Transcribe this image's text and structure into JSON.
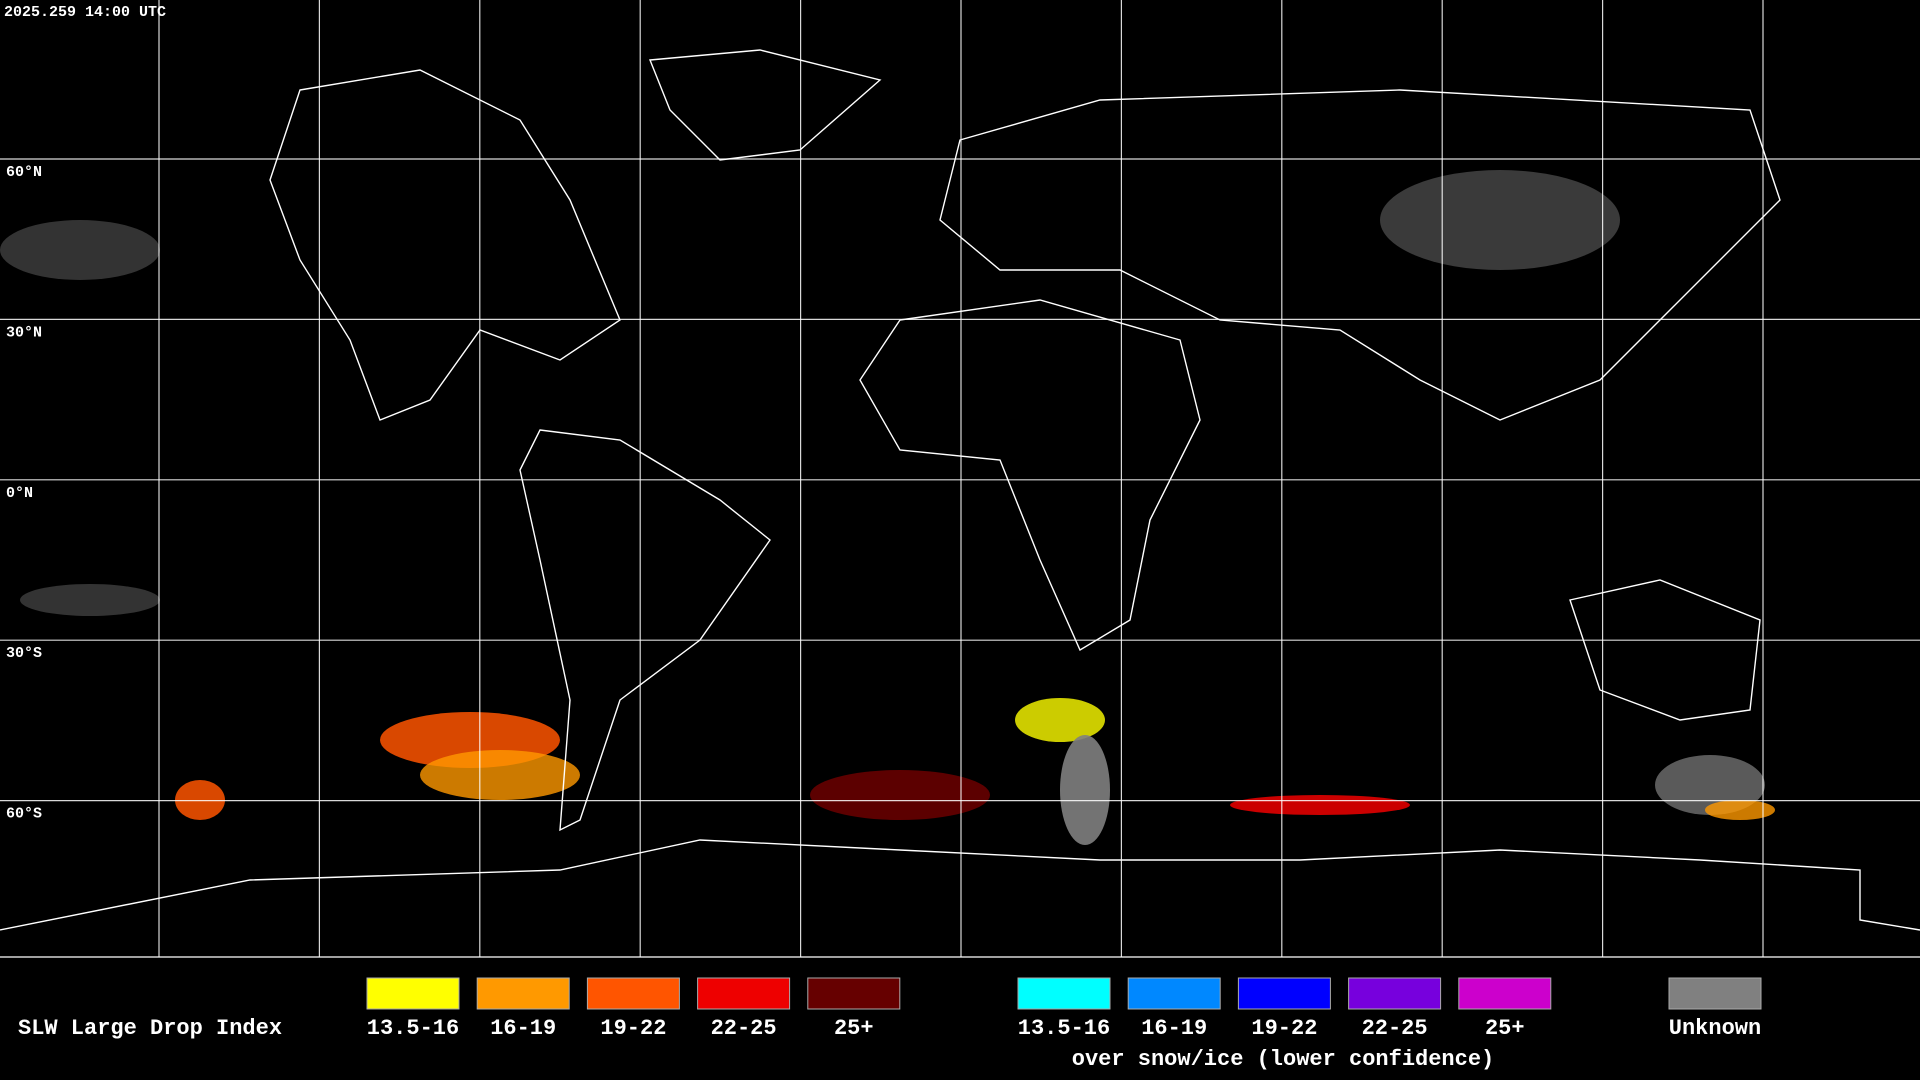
{
  "header": {
    "timestamp": "2025.259 14:00 UTC"
  },
  "map": {
    "lat_labels": [
      "60°N",
      "30°N",
      "0°N",
      "30°S",
      "60°S"
    ]
  },
  "legend": {
    "title": "SLW Large Drop Index",
    "items": [
      {
        "label": "13.5-16",
        "color": "#ffff00"
      },
      {
        "label": "16-19",
        "color": "#ff9900"
      },
      {
        "label": "19-22",
        "color": "#ff5500"
      },
      {
        "label": "22-25",
        "color": "#ee0000"
      },
      {
        "label": "25+",
        "color": "#660000"
      }
    ],
    "snow_items": [
      {
        "label": "13.5-16",
        "color": "#00ffff"
      },
      {
        "label": "16-19",
        "color": "#0088ff"
      },
      {
        "label": "19-22",
        "color": "#0000ff"
      },
      {
        "label": "22-25",
        "color": "#7700dd"
      },
      {
        "label": "25+",
        "color": "#cc00cc"
      }
    ],
    "snow_note": "over snow/ice (lower confidence)",
    "unknown": {
      "label": "Unknown",
      "color": "#808080"
    }
  }
}
